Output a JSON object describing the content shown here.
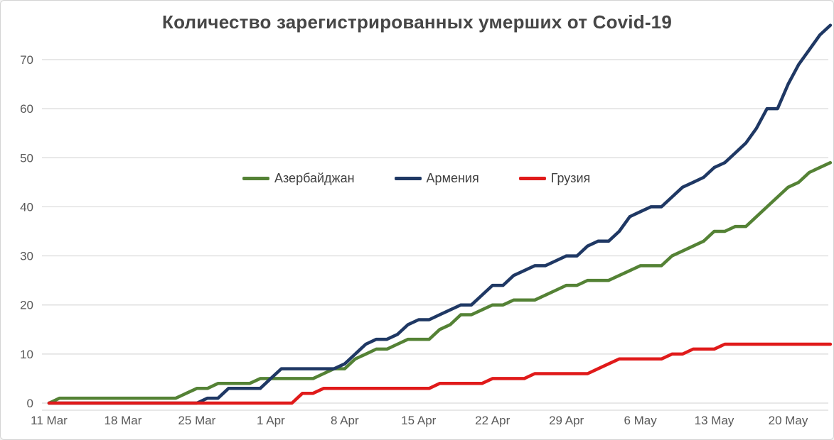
{
  "colors": {
    "background": "#ffffff",
    "border": "#d4d4d4",
    "grid": "#d9d9d9",
    "axis_label": "#595959",
    "title": "#464646",
    "legend_label": "#404040"
  },
  "chart_data": {
    "type": "line",
    "title": "Количество зарегистрированных умерших от Covid-19",
    "xlabel": "",
    "ylabel": "",
    "grid": "horizontal-only",
    "legend_position": "inside-top-center",
    "y_ticks": [
      0,
      10,
      20,
      30,
      40,
      50,
      60,
      70
    ],
    "ylim": [
      0,
      78
    ],
    "x_tick_labels": [
      "11 Mar",
      "18 Mar",
      "25 Mar",
      "1 Apr",
      "8 Apr",
      "15 Apr",
      "22 Apr",
      "29 Apr",
      "6 May",
      "13 May",
      "20 May"
    ],
    "dates": [
      "11 Mar",
      "12 Mar",
      "13 Mar",
      "14 Mar",
      "15 Mar",
      "16 Mar",
      "17 Mar",
      "18 Mar",
      "19 Mar",
      "20 Mar",
      "21 Mar",
      "22 Mar",
      "23 Mar",
      "24 Mar",
      "25 Mar",
      "26 Mar",
      "27 Mar",
      "28 Mar",
      "29 Mar",
      "30 Mar",
      "31 Mar",
      "1 Apr",
      "2 Apr",
      "3 Apr",
      "4 Apr",
      "5 Apr",
      "6 Apr",
      "7 Apr",
      "8 Apr",
      "9 Apr",
      "10 Apr",
      "11 Apr",
      "12 Apr",
      "13 Apr",
      "14 Apr",
      "15 Apr",
      "16 Apr",
      "17 Apr",
      "18 Apr",
      "19 Apr",
      "20 Apr",
      "21 Apr",
      "22 Apr",
      "23 Apr",
      "24 Apr",
      "25 Apr",
      "26 Apr",
      "27 Apr",
      "28 Apr",
      "29 Apr",
      "30 Apr",
      "1 May",
      "2 May",
      "3 May",
      "4 May",
      "5 May",
      "6 May",
      "7 May",
      "8 May",
      "9 May",
      "10 May",
      "11 May",
      "12 May",
      "13 May",
      "14 May",
      "15 May",
      "16 May",
      "17 May",
      "18 May",
      "19 May",
      "20 May",
      "21 May",
      "22 May",
      "23 May",
      "24 May"
    ],
    "series": [
      {
        "id": "azerbaijan",
        "name": "Азербайджан",
        "color": "#548235",
        "values": [
          0,
          1,
          1,
          1,
          1,
          1,
          1,
          1,
          1,
          1,
          1,
          1,
          1,
          2,
          3,
          3,
          4,
          4,
          4,
          4,
          5,
          5,
          5,
          5,
          5,
          5,
          6,
          7,
          7,
          9,
          10,
          11,
          11,
          12,
          13,
          13,
          13,
          15,
          16,
          18,
          18,
          19,
          20,
          20,
          21,
          21,
          21,
          22,
          23,
          24,
          24,
          25,
          25,
          25,
          26,
          27,
          28,
          28,
          28,
          30,
          31,
          32,
          33,
          35,
          35,
          36,
          36,
          38,
          40,
          42,
          44,
          45,
          47,
          48,
          49
        ]
      },
      {
        "id": "armenia",
        "name": "Армения",
        "color": "#1f3864",
        "values": [
          0,
          0,
          0,
          0,
          0,
          0,
          0,
          0,
          0,
          0,
          0,
          0,
          0,
          0,
          0,
          1,
          1,
          3,
          3,
          3,
          3,
          5,
          7,
          7,
          7,
          7,
          7,
          7,
          8,
          10,
          12,
          13,
          13,
          14,
          16,
          17,
          17,
          18,
          19,
          20,
          20,
          22,
          24,
          24,
          26,
          27,
          28,
          28,
          29,
          30,
          30,
          32,
          33,
          33,
          35,
          38,
          39,
          40,
          40,
          42,
          44,
          45,
          46,
          48,
          49,
          51,
          53,
          56,
          60,
          60,
          65,
          69,
          72,
          75,
          77
        ]
      },
      {
        "id": "georgia",
        "name": "Грузия",
        "color": "#e01a1a",
        "values": [
          0,
          0,
          0,
          0,
          0,
          0,
          0,
          0,
          0,
          0,
          0,
          0,
          0,
          0,
          0,
          0,
          0,
          0,
          0,
          0,
          0,
          0,
          0,
          0,
          2,
          2,
          3,
          3,
          3,
          3,
          3,
          3,
          3,
          3,
          3,
          3,
          3,
          4,
          4,
          4,
          4,
          4,
          5,
          5,
          5,
          5,
          6,
          6,
          6,
          6,
          6,
          6,
          7,
          8,
          9,
          9,
          9,
          9,
          9,
          10,
          10,
          11,
          11,
          11,
          12,
          12,
          12,
          12,
          12,
          12,
          12,
          12,
          12,
          12,
          12
        ]
      }
    ]
  }
}
